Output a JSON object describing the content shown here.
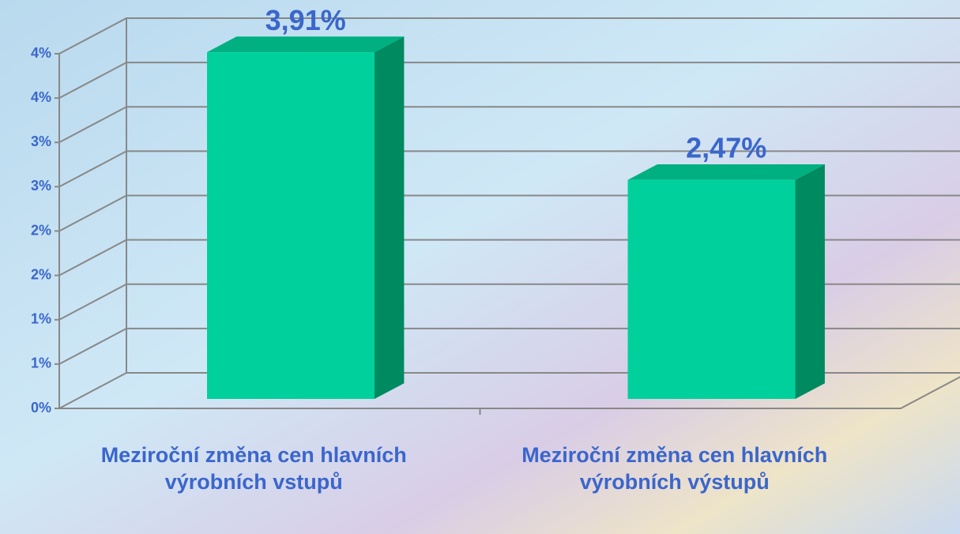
{
  "chart_data": {
    "type": "bar3d",
    "categories": [
      "Meziroční změna cen hlavních výrobních vstupů",
      "Meziroční změna cen hlavních výrobních výstupů"
    ],
    "values": [
      3.91,
      2.47
    ],
    "value_labels": [
      "3,91%",
      "2,47%"
    ],
    "color": "#00d19c",
    "ylim": [
      0,
      4
    ],
    "yticks": [
      {
        "value": 0,
        "label": "0%"
      },
      {
        "value": 0.5,
        "label": "1%"
      },
      {
        "value": 1,
        "label": "1%"
      },
      {
        "value": 1.5,
        "label": "2%"
      },
      {
        "value": 2,
        "label": "2%"
      },
      {
        "value": 2.5,
        "label": "3%"
      },
      {
        "value": 3,
        "label": "3%"
      },
      {
        "value": 3.5,
        "label": "4%"
      },
      {
        "value": 4,
        "label": "4%"
      }
    ],
    "grid": true
  }
}
